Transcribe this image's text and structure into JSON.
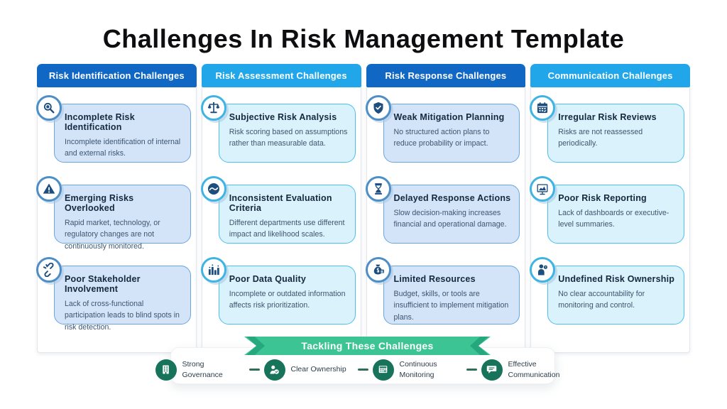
{
  "title": "Challenges In Risk Management Template",
  "colors": {
    "header_dark_blue": "#1168c4",
    "header_light_blue": "#21a7e9",
    "ribbon_green": "#3dc495",
    "ribbon_fold_green": "#27a77d",
    "footer_circle_green": "#17735a",
    "dash_green": "#2f6e58",
    "icon_navy": "#1d4e7e"
  },
  "columns": [
    {
      "header": "Risk Identification Challenges",
      "colors": {
        "header": "#1168c4",
        "card_bg": "#d3e4f8",
        "card_border": "#6aa4dd",
        "icon_ring": "#4d8ec6"
      },
      "cards": [
        {
          "icon": "search-icon",
          "title": "Incomplete Risk Identification",
          "desc": "Incomplete identification of internal and external risks."
        },
        {
          "icon": "warning-icon",
          "title": "Emerging Risks Overlooked",
          "desc": "Rapid market, technology, or regulatory changes are not continuously monitored."
        },
        {
          "icon": "broken-link-icon",
          "title": "Poor Stakeholder Involvement",
          "desc": "Lack of cross-functional participation leads to blind spots in risk detection."
        }
      ]
    },
    {
      "header": "Risk Assessment Challenges",
      "colors": {
        "header": "#21a7e9",
        "card_bg": "#d9f2fb",
        "card_border": "#4cc0ea",
        "icon_ring": "#3fb4e4"
      },
      "cards": [
        {
          "icon": "balance-scale-icon",
          "title": "Subjective Risk Analysis",
          "desc": "Risk scoring based on assumptions rather than measurable data."
        },
        {
          "icon": "gauge-icon",
          "title": "Inconsistent Evaluation Criteria",
          "desc": "Different departments use different impact and likelihood scales."
        },
        {
          "icon": "bar-chart-icon",
          "title": "Poor Data Quality",
          "desc": "Incomplete or outdated information affects risk prioritization."
        }
      ]
    },
    {
      "header": "Risk Response Challenges",
      "colors": {
        "header": "#1168c4",
        "card_bg": "#d3e4f8",
        "card_border": "#6aa4dd",
        "icon_ring": "#4d8ec6"
      },
      "cards": [
        {
          "icon": "shield-icon",
          "title": "Weak Mitigation Planning",
          "desc": "No structured action plans to reduce probability or impact."
        },
        {
          "icon": "hourglass-icon",
          "title": "Delayed Response Actions",
          "desc": "Slow decision-making increases financial and operational damage."
        },
        {
          "icon": "resources-icon",
          "title": "Limited Resources",
          "desc": "Budget, skills, or tools are insufficient to implement mitigation plans."
        }
      ]
    },
    {
      "header": "Communication Challenges",
      "colors": {
        "header": "#21a7e9",
        "card_bg": "#d9f2fb",
        "card_border": "#4cc0ea",
        "icon_ring": "#3fb4e4"
      },
      "cards": [
        {
          "icon": "calendar-icon",
          "title": "Irregular Risk Reviews",
          "desc": "Risks are not reassessed periodically."
        },
        {
          "icon": "report-icon",
          "title": "Poor Risk Reporting",
          "desc": "Lack of dashboards or executive-level summaries."
        },
        {
          "icon": "person-icon",
          "title": "Undefined Risk Ownership",
          "desc": "No clear accountability for monitoring and control."
        }
      ]
    }
  ],
  "footer": {
    "banner": "Tackling These Challenges",
    "items": [
      {
        "icon": "building-icon",
        "label": "Strong Governance"
      },
      {
        "icon": "ownership-icon",
        "label": "Clear Ownership"
      },
      {
        "icon": "monitoring-icon",
        "label": "Continuous Monitoring"
      },
      {
        "icon": "communication-icon",
        "label": "Effective Communication"
      }
    ]
  }
}
